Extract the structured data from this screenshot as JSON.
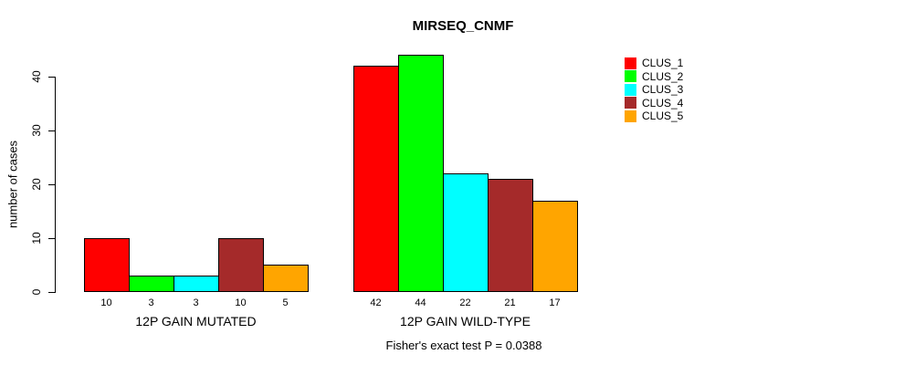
{
  "chart_data": {
    "type": "bar",
    "title": "MIRSEQ_CNMF",
    "xlabel": "",
    "ylabel": "number of cases",
    "ylim": [
      0,
      40
    ],
    "yticks": [
      0,
      10,
      20,
      30,
      40
    ],
    "grid": false,
    "legend_position": "top-right",
    "categories": [
      "12P GAIN MUTATED",
      "12P GAIN WILD-TYPE"
    ],
    "series": [
      {
        "name": "CLUS_1",
        "color": "#FF0000",
        "values": [
          10,
          42
        ]
      },
      {
        "name": "CLUS_2",
        "color": "#00FF00",
        "values": [
          3,
          44
        ]
      },
      {
        "name": "CLUS_3",
        "color": "#00FFFF",
        "values": [
          3,
          22
        ]
      },
      {
        "name": "CLUS_4",
        "color": "#A52A2A",
        "values": [
          10,
          21
        ]
      },
      {
        "name": "CLUS_5",
        "color": "#FFA500",
        "values": [
          5,
          17
        ]
      }
    ],
    "bar_value_labels": true,
    "footnote": "Fisher's exact test P = 0.0388"
  }
}
